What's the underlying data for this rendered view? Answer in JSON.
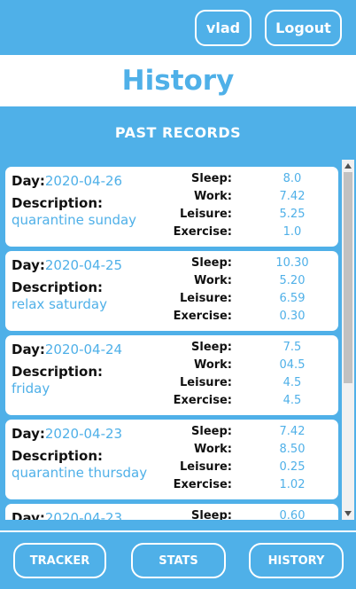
{
  "header": {
    "user_label": "vlad",
    "logout_label": "Logout"
  },
  "page": {
    "title": "History"
  },
  "section": {
    "title": "PAST RECORDS"
  },
  "labels": {
    "day": "Day:",
    "description": "Description:",
    "sleep": "Sleep:",
    "work": "Work:",
    "leisure": "Leisure:",
    "exercise": "Exercise:"
  },
  "records": [
    {
      "day": "2020-04-26",
      "description": "quarantine sunday",
      "sleep": "8.0",
      "work": "7.42",
      "leisure": "5.25",
      "exercise": "1.0"
    },
    {
      "day": "2020-04-25",
      "description": "relax saturday",
      "sleep": "10.30",
      "work": "5.20",
      "leisure": "6.59",
      "exercise": "0.30"
    },
    {
      "day": "2020-04-24",
      "description": "friday",
      "sleep": "7.5",
      "work": "04.5",
      "leisure": "4.5",
      "exercise": "4.5"
    },
    {
      "day": "2020-04-23",
      "description": "quarantine thursday",
      "sleep": "7.42",
      "work": "8.50",
      "leisure": "0.25",
      "exercise": "1.02"
    },
    {
      "day": "2020-04-23",
      "description": "",
      "sleep": "0.60",
      "work": "",
      "leisure": "",
      "exercise": ""
    }
  ],
  "nav": {
    "tracker": "TRACKER",
    "stats": "STATS",
    "history": "HISTORY"
  },
  "colors": {
    "primary": "#4fb0e8",
    "card": "#ffffff",
    "text": "#111111"
  }
}
